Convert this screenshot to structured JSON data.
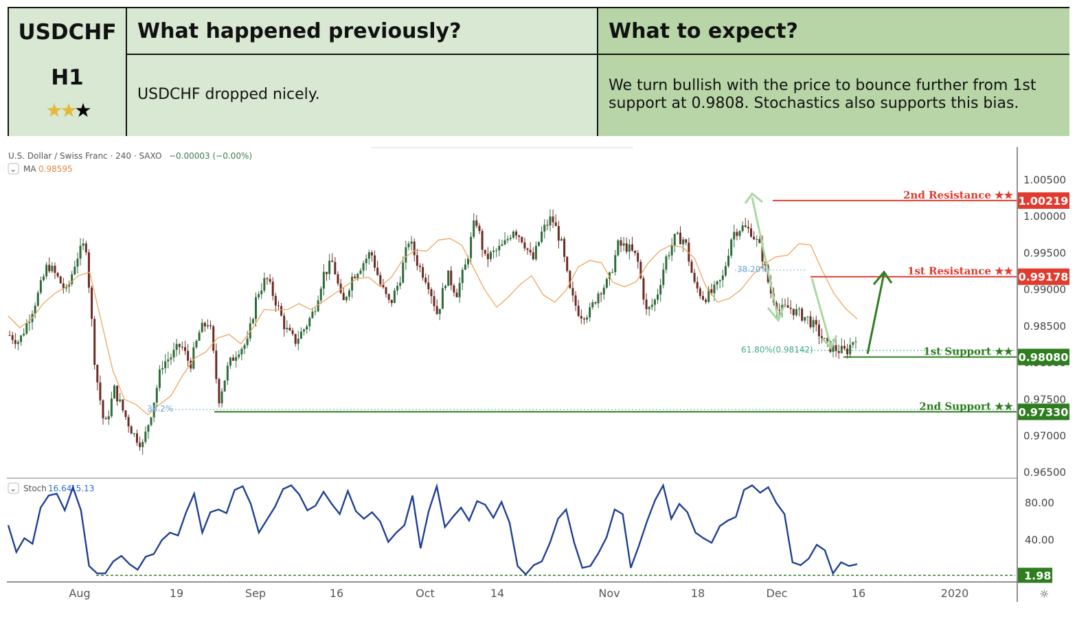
{
  "header": {
    "symbol": "USDCHF",
    "timeframe": "H1",
    "rating": {
      "filled": 2,
      "total": 3
    },
    "col1_title": "What happened previously?",
    "col2_title": "What to expect?",
    "col1_text": "USDCHF dropped nicely.",
    "col2_text": "We turn bullish with the price to bounce further from 1st support at 0.9808. Stochastics also supports this bias."
  },
  "legend": {
    "instrument": "U.S. Dollar / Swiss Franc · 240 · SAXO",
    "change": "−0.00003 (−0.00%)",
    "ma_label": "MA",
    "ma_value": "0.98595",
    "stoch_label": "Stoch",
    "stoch_k": "16.64",
    "stoch_d": "15.13"
  },
  "chart_data": {
    "type": "candlestick",
    "x_ticks": [
      "Aug",
      "19",
      "Sep",
      "16",
      "Oct",
      "14",
      "Nov",
      "18",
      "Dec",
      "16",
      "2020"
    ],
    "price_ticks": [
      "1.00500",
      "1.00000",
      "0.99500",
      "0.99000",
      "0.98500",
      "0.98000",
      "0.97500",
      "0.97000",
      "0.96500"
    ],
    "price_range": [
      0.9646,
      1.0066
    ],
    "price_path": [
      0.9838,
      0.9829,
      0.986,
      0.9894,
      0.9935,
      0.9917,
      0.9896,
      0.9943,
      0.9965,
      0.9793,
      0.971,
      0.9764,
      0.9732,
      0.9703,
      0.9688,
      0.9738,
      0.9798,
      0.9809,
      0.9825,
      0.9797,
      0.9844,
      0.9858,
      0.975,
      0.9796,
      0.9818,
      0.9827,
      0.9893,
      0.9916,
      0.9884,
      0.9847,
      0.9829,
      0.9847,
      0.9871,
      0.9921,
      0.9938,
      0.9878,
      0.9917,
      0.9934,
      0.9952,
      0.9907,
      0.9879,
      0.9913,
      0.9969,
      0.9933,
      0.9911,
      0.9866,
      0.9922,
      0.9895,
      0.9935,
      0.9999,
      0.9942,
      0.9951,
      0.9961,
      0.9984,
      0.9968,
      0.9939,
      0.9979,
      0.9999,
      0.9965,
      0.9893,
      0.9866,
      0.9869,
      0.9899,
      0.9911,
      0.9961,
      0.9958,
      0.9943,
      0.9868,
      0.9888,
      0.9942,
      0.9971,
      0.9969,
      0.9907,
      0.9889,
      0.9897,
      0.9916,
      0.9977,
      0.9986,
      0.998,
      0.9955,
      0.9898,
      0.9871,
      0.9876,
      0.9867,
      0.986,
      0.9843,
      0.9823,
      0.9818,
      0.9815,
      0.9837
    ],
    "ma_path": [
      0.9864,
      0.9848,
      0.986,
      0.9881,
      0.9895,
      0.9904,
      0.9919,
      0.9924,
      0.9857,
      0.9789,
      0.975,
      0.9743,
      0.9729,
      0.9743,
      0.9755,
      0.9783,
      0.9806,
      0.9815,
      0.9834,
      0.9839,
      0.9826,
      0.9847,
      0.9873,
      0.9872,
      0.9873,
      0.9881,
      0.9873,
      0.9883,
      0.9894,
      0.9905,
      0.9915,
      0.9917,
      0.9904,
      0.9918,
      0.9943,
      0.9954,
      0.9953,
      0.9968,
      0.997,
      0.9961,
      0.993,
      0.9899,
      0.9876,
      0.989,
      0.9907,
      0.9919,
      0.9893,
      0.9883,
      0.99,
      0.9931,
      0.994,
      0.9937,
      0.991,
      0.9904,
      0.9911,
      0.9936,
      0.9953,
      0.9961,
      0.9958,
      0.9943,
      0.9904,
      0.9883,
      0.9888,
      0.99,
      0.992,
      0.9935,
      0.9945,
      0.9947,
      0.9963,
      0.9961,
      0.9926,
      0.9895,
      0.9874,
      0.986
    ],
    "levels": [
      {
        "label": "2nd Resistance ★★",
        "value": "1.00219",
        "price": 1.00219,
        "color": "#e03b2e"
      },
      {
        "label": "1st Resistance ★★",
        "value": "0.99178",
        "price": 0.99178,
        "color": "#e03b2e"
      },
      {
        "label": "1st Support ★★",
        "value": "0.98080",
        "price": 0.9808,
        "color": "#2e7d1f"
      },
      {
        "label": "2nd Support ★★",
        "value": "0.97330",
        "price": 0.9733,
        "color": "#2e7d1f"
      }
    ],
    "fib_labels": [
      "38.20%",
      "61.80%(0.98142)",
      "38.2%"
    ],
    "stoch_ticks": [
      "80.00",
      "40.00"
    ],
    "stoch_range": [
      0,
      100
    ],
    "stoch_level": {
      "value": "1.98",
      "y": 1.98,
      "color": "#2e7d1f"
    },
    "stoch_path": [
      56,
      27,
      42,
      36,
      75,
      88,
      90,
      72,
      97,
      72,
      12,
      4,
      4,
      17,
      23,
      14,
      8,
      22,
      25,
      40,
      48,
      45,
      70,
      90,
      48,
      70,
      73,
      69,
      94,
      98,
      79,
      48,
      62,
      76,
      95,
      99,
      89,
      72,
      77,
      92,
      79,
      68,
      93,
      71,
      63,
      70,
      60,
      38,
      48,
      56,
      88,
      31,
      71,
      98,
      54,
      65,
      75,
      61,
      82,
      78,
      64,
      81,
      59,
      12,
      3,
      13,
      17,
      37,
      63,
      73,
      37,
      10,
      12,
      26,
      43,
      73,
      68,
      10,
      34,
      60,
      83,
      99,
      63,
      79,
      70,
      48,
      42,
      37,
      55,
      61,
      65,
      94,
      99,
      91,
      97,
      80,
      68,
      16,
      13,
      20,
      35,
      29,
      4,
      16,
      12,
      14
    ]
  }
}
